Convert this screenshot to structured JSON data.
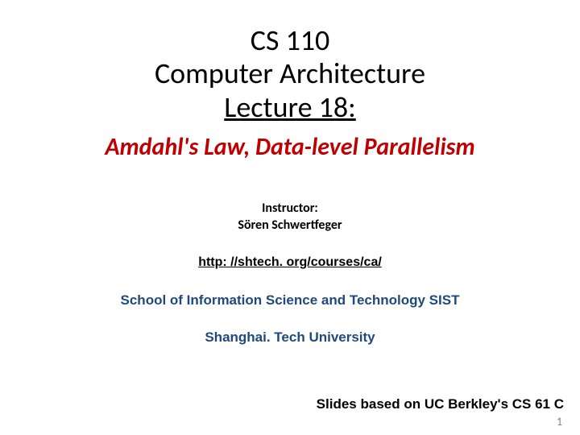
{
  "colors": {
    "background": "#ffffff",
    "title": "#000000",
    "subtitle": "#c00000",
    "instructor": "#000000",
    "link": "#000000",
    "school": "#1f497d",
    "university": "#1f497d",
    "credit": "#000000",
    "pagenum": "#808080"
  },
  "title": {
    "line1": "CS 110",
    "line2": "Computer Architecture",
    "line3": "Lecture 18:",
    "fontsize": 36
  },
  "subtitle": {
    "text": "Amdahl's Law, Data-level Parallelism",
    "fontsize": 30
  },
  "instructor": {
    "label": "Instructor:",
    "name": "Sören Schwertfeger",
    "fontsize": 16
  },
  "link": {
    "text": "http: //shtech. org/courses/ca/",
    "fontsize": 16
  },
  "school": {
    "text": "School of Information Science and Technology SIST",
    "fontsize": 17
  },
  "university": {
    "text": "Shanghai. Tech University",
    "fontsize": 17
  },
  "credit": {
    "text": "Slides based on UC Berkley's CS 61 C",
    "fontsize": 17
  },
  "pagenum": {
    "text": "1",
    "fontsize": 14
  }
}
